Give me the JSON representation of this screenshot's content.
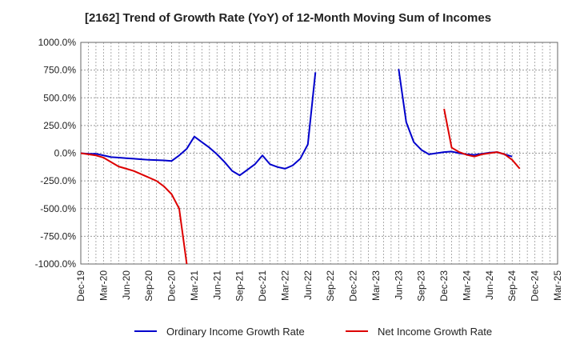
{
  "chart_data": {
    "type": "line",
    "title": "[2162]  Trend of Growth Rate (YoY) of 12-Month Moving Sum of Incomes",
    "xlabel": "",
    "ylabel": "",
    "ylim": [
      -1000,
      1000
    ],
    "yticks": [
      "1000.0%",
      "750.0%",
      "500.0%",
      "250.0%",
      "0.0%",
      "-250.0%",
      "-500.0%",
      "-750.0%",
      "-1000.0%"
    ],
    "ytick_values": [
      1000,
      750,
      500,
      250,
      0,
      -250,
      -500,
      -750,
      -1000
    ],
    "x_categories": [
      "Dec-19",
      "Mar-20",
      "Jun-20",
      "Sep-20",
      "Dec-20",
      "Mar-21",
      "Jun-21",
      "Sep-21",
      "Dec-21",
      "Mar-22",
      "Jun-22",
      "Sep-22",
      "Dec-22",
      "Mar-23",
      "Jun-23",
      "Sep-23",
      "Dec-23",
      "Mar-24",
      "Jun-24",
      "Sep-24",
      "Dec-24",
      "Mar-25"
    ],
    "grid": true,
    "legend_position": "bottom",
    "series": [
      {
        "name": "Ordinary Income Growth Rate",
        "color": "#0000cc",
        "points": [
          [
            0,
            0
          ],
          [
            1,
            -5
          ],
          [
            2,
            -5
          ],
          [
            3,
            -20
          ],
          [
            4,
            -35
          ],
          [
            5,
            -40
          ],
          [
            6,
            -45
          ],
          [
            7,
            -50
          ],
          [
            8,
            -55
          ],
          [
            9,
            -60
          ],
          [
            10,
            -62
          ],
          [
            11,
            -65
          ],
          [
            12,
            -70
          ],
          [
            13,
            -20
          ],
          [
            14,
            40
          ],
          [
            15,
            150
          ],
          [
            16,
            100
          ],
          [
            17,
            50
          ],
          [
            18,
            -10
          ],
          [
            19,
            -80
          ],
          [
            20,
            -160
          ],
          [
            21,
            -200
          ],
          [
            22,
            -150
          ],
          [
            23,
            -100
          ],
          [
            24,
            -20
          ],
          [
            25,
            -100
          ],
          [
            26,
            -125
          ],
          [
            27,
            -140
          ],
          [
            28,
            -110
          ],
          [
            29,
            -50
          ],
          [
            30,
            80
          ],
          [
            31,
            730
          ]
        ],
        "points_segment_2": [
          [
            42,
            760
          ],
          [
            43,
            280
          ],
          [
            44,
            100
          ],
          [
            45,
            30
          ],
          [
            46,
            -10
          ],
          [
            47,
            0
          ],
          [
            48,
            10
          ],
          [
            49,
            15
          ],
          [
            50,
            0
          ],
          [
            51,
            -10
          ],
          [
            52,
            -15
          ],
          [
            53,
            -5
          ],
          [
            54,
            5
          ],
          [
            55,
            10
          ],
          [
            56,
            -10
          ],
          [
            57,
            -30
          ]
        ]
      },
      {
        "name": "Net Income Growth Rate",
        "color": "#dd0000",
        "points": [
          [
            0,
            0
          ],
          [
            1,
            -10
          ],
          [
            2,
            -20
          ],
          [
            3,
            -40
          ],
          [
            4,
            -80
          ],
          [
            5,
            -120
          ],
          [
            6,
            -140
          ],
          [
            7,
            -160
          ],
          [
            8,
            -190
          ],
          [
            9,
            -220
          ],
          [
            10,
            -250
          ],
          [
            11,
            -300
          ],
          [
            12,
            -370
          ],
          [
            13,
            -500
          ],
          [
            14,
            -1000
          ]
        ],
        "points_segment_2": [
          [
            48,
            400
          ],
          [
            49,
            50
          ],
          [
            50,
            10
          ],
          [
            51,
            -15
          ],
          [
            52,
            -30
          ],
          [
            53,
            -10
          ],
          [
            54,
            0
          ],
          [
            55,
            10
          ],
          [
            56,
            -10
          ],
          [
            57,
            -60
          ],
          [
            58,
            -140
          ]
        ]
      }
    ]
  }
}
